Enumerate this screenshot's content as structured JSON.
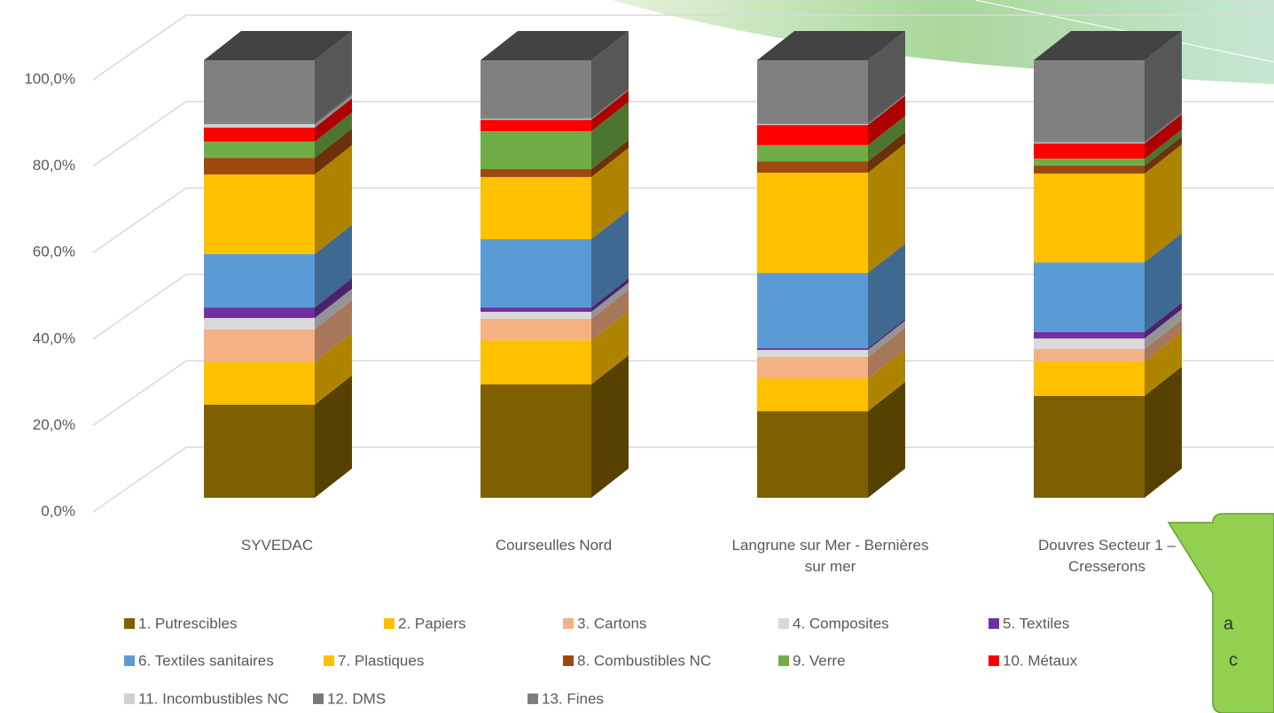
{
  "chart_data": {
    "type": "stacked-bar-3d",
    "categories": [
      "SYVEDAC",
      "Courseulles Nord",
      "Langrune sur Mer - Bernières sur mer",
      "Douvres Secteur 1 – Cresserons"
    ],
    "series": [
      {
        "name": "1. Putrescibles",
        "color": "#7f6000",
        "values": [
          21.3,
          25.9,
          19.8,
          23.3
        ]
      },
      {
        "name": "2. Papiers",
        "color": "#ffc000",
        "values": [
          9.7,
          10.1,
          7.5,
          7.9
        ]
      },
      {
        "name": "3. Cartons",
        "color": "#f4b183",
        "values": [
          7.5,
          4.9,
          4.9,
          2.8
        ]
      },
      {
        "name": "4. Composites",
        "color": "#d9d9d9",
        "values": [
          2.6,
          1.6,
          1.6,
          2.4
        ]
      },
      {
        "name": "5. Textiles",
        "color": "#7030a0",
        "values": [
          2.4,
          1.0,
          0.4,
          1.5
        ]
      },
      {
        "name": "6. Textiles sanitaires",
        "color": "#5b9bd5",
        "values": [
          12.2,
          15.6,
          17.2,
          15.9
        ]
      },
      {
        "name": "7. Plastiques",
        "color": "#ffc000",
        "values": [
          18.2,
          14.2,
          22.9,
          20.3
        ]
      },
      {
        "name": "8. Combustibles NC",
        "color": "#9e480e",
        "values": [
          3.8,
          1.8,
          2.6,
          1.8
        ]
      },
      {
        "name": "9. Verre",
        "color": "#70ad47",
        "values": [
          3.7,
          8.7,
          3.7,
          1.6
        ]
      },
      {
        "name": "10. Métaux",
        "color": "#ff0000",
        "values": [
          3.2,
          2.6,
          4.6,
          3.5
        ]
      },
      {
        "name": "11. Incombustibles NC",
        "color": "#d0d0d0",
        "values": [
          0.8,
          0.2,
          0.2,
          0.2
        ]
      },
      {
        "name": "12. DMS",
        "color": "#7a7a7a",
        "values": [
          0.4,
          0.2,
          0.2,
          0.2
        ]
      },
      {
        "name": "13. Fines",
        "color": "#808080",
        "values": [
          14.2,
          13.2,
          14.4,
          18.6
        ]
      }
    ],
    "ylim": [
      0,
      100
    ],
    "yticks": [
      {
        "value": 0,
        "label": "0,0%"
      },
      {
        "value": 20,
        "label": "20,0%"
      },
      {
        "value": 40,
        "label": "40,0%"
      },
      {
        "value": 60,
        "label": "60,0%"
      },
      {
        "value": 80,
        "label": "80,0%"
      },
      {
        "value": 100,
        "label": "100,0%"
      }
    ],
    "grid": true,
    "legend": "bottom",
    "annotations": [
      "a",
      "c"
    ]
  }
}
